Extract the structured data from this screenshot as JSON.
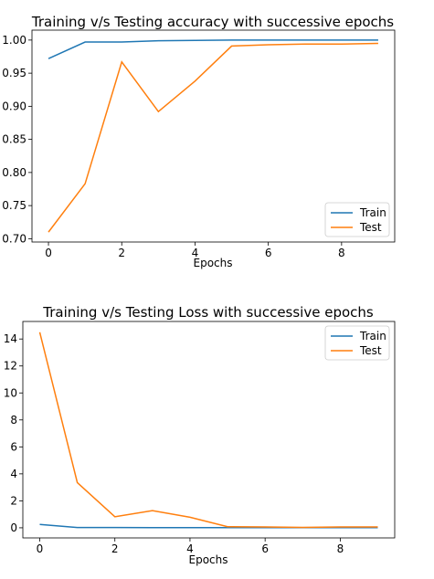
{
  "colors": {
    "train": "#1f77b4",
    "test": "#ff7f0e"
  },
  "chart_data": [
    {
      "type": "line",
      "title": "Training v/s Testing accuracy with successive epochs",
      "xlabel": "Epochs",
      "ylabel": "",
      "x": [
        0,
        1,
        2,
        3,
        4,
        5,
        6,
        7,
        8,
        9
      ],
      "xticks": [
        "0",
        "2",
        "4",
        "6",
        "8"
      ],
      "xtick_values": [
        0,
        2,
        4,
        6,
        8
      ],
      "yticks": [
        "0.70",
        "0.75",
        "0.80",
        "0.85",
        "0.90",
        "0.95",
        "1.00"
      ],
      "ytick_values": [
        0.7,
        0.75,
        0.8,
        0.85,
        0.9,
        0.95,
        1.0
      ],
      "xlim": [
        -0.45,
        9.45
      ],
      "ylim": [
        0.695,
        1.015
      ],
      "legend_position": "lower-right",
      "grid": false,
      "series": [
        {
          "name": "Train",
          "color": "#1f77b4",
          "values": [
            0.972,
            0.997,
            0.997,
            0.999,
            0.9995,
            1.0,
            1.0,
            1.0,
            1.0,
            1.0
          ]
        },
        {
          "name": "Test",
          "color": "#ff7f0e",
          "values": [
            0.71,
            0.783,
            0.967,
            0.892,
            0.938,
            0.991,
            0.993,
            0.994,
            0.994,
            0.995
          ]
        }
      ]
    },
    {
      "type": "line",
      "title": "Training v/s Testing Loss with successive epochs",
      "xlabel": "Epochs",
      "ylabel": "",
      "x": [
        0,
        1,
        2,
        3,
        4,
        5,
        6,
        7,
        8,
        9
      ],
      "xticks": [
        "0",
        "2",
        "4",
        "6",
        "8"
      ],
      "xtick_values": [
        0,
        2,
        4,
        6,
        8
      ],
      "yticks": [
        "0",
        "2",
        "4",
        "6",
        "8",
        "10",
        "12",
        "14"
      ],
      "ytick_values": [
        0,
        2,
        4,
        6,
        8,
        10,
        12,
        14
      ],
      "xlim": [
        -0.45,
        9.45
      ],
      "ylim": [
        -0.75,
        15.3
      ],
      "legend_position": "upper-right",
      "grid": false,
      "series": [
        {
          "name": "Train",
          "color": "#1f77b4",
          "values": [
            0.25,
            0.02,
            0.02,
            0.01,
            0.01,
            0.01,
            0.01,
            0.01,
            0.01,
            0.01
          ]
        },
        {
          "name": "Test",
          "color": "#ff7f0e",
          "values": [
            14.5,
            3.35,
            0.82,
            1.27,
            0.78,
            0.08,
            0.06,
            0.03,
            0.06,
            0.06
          ]
        }
      ]
    }
  ]
}
